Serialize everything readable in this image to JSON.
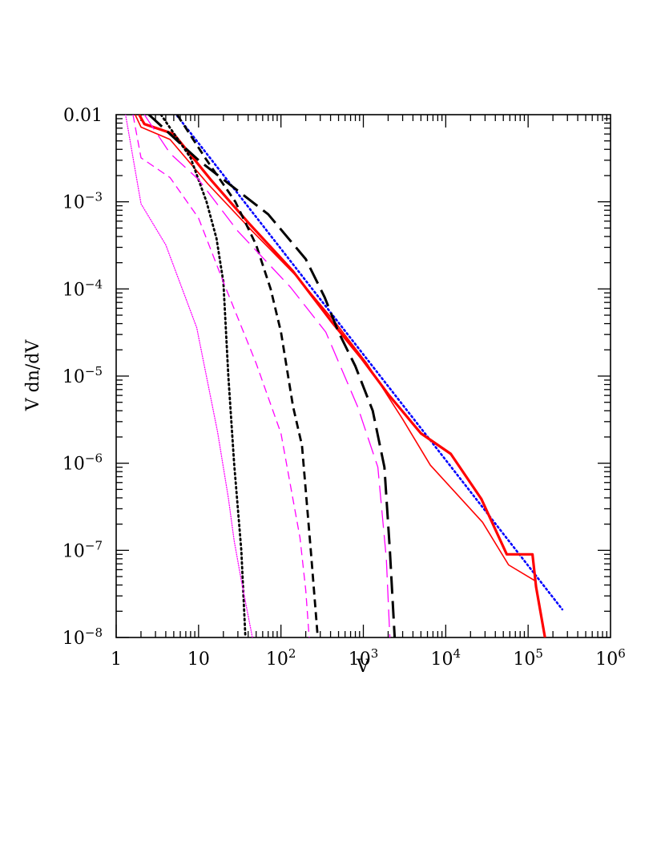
{
  "chart_data": {
    "type": "line",
    "xlabel": "V",
    "ylabel": "V dn/dV",
    "x_scale": "log",
    "y_scale": "log",
    "xlim": [
      1,
      1000000
    ],
    "ylim": [
      1e-08,
      0.01
    ],
    "x_ticks": [
      {
        "value": 1,
        "base": "1",
        "exp": ""
      },
      {
        "value": 10,
        "base": "10",
        "exp": ""
      },
      {
        "value": 100,
        "base": "10",
        "exp": "2"
      },
      {
        "value": 1000,
        "base": "10",
        "exp": "3"
      },
      {
        "value": 10000,
        "base": "10",
        "exp": "4"
      },
      {
        "value": 100000,
        "base": "10",
        "exp": "5"
      },
      {
        "value": 1000000,
        "base": "10",
        "exp": "6"
      }
    ],
    "y_ticks": [
      {
        "value": 1e-08,
        "base": "10",
        "exp": "−8"
      },
      {
        "value": 1e-07,
        "base": "10",
        "exp": "−7"
      },
      {
        "value": 1e-06,
        "base": "10",
        "exp": "−6"
      },
      {
        "value": 1e-05,
        "base": "10",
        "exp": "−5"
      },
      {
        "value": 0.0001,
        "base": "10",
        "exp": "−4"
      },
      {
        "value": 0.001,
        "base": "10",
        "exp": "−3"
      },
      {
        "value": 0.01,
        "base": "0.01",
        "exp": ""
      }
    ],
    "grid": false,
    "legend": "none",
    "series": [
      {
        "color": "#0000ff",
        "style": "dotted",
        "width": 2.6,
        "x": [
          5.5,
          260000
        ],
        "y": [
          0.0097,
          2.1e-08
        ]
      },
      {
        "color": "#ff0000",
        "style": "solid",
        "width": 1.6,
        "x": [
          1.7,
          2.0,
          4.5,
          13,
          45,
          160,
          450,
          1100,
          3000,
          6500,
          28000,
          58000,
          125000
        ],
        "y": [
          0.01,
          0.0072,
          0.0052,
          0.0016,
          0.00046,
          0.000135,
          4.2e-05,
          1.4e-05,
          3.2e-06,
          9.5e-07,
          2.1e-07,
          6.8e-08,
          4.4e-08
        ]
      },
      {
        "color": "#ff0000",
        "style": "solid",
        "width": 3.2,
        "x": [
          1.9,
          2.2,
          5.0,
          14,
          40,
          140,
          420,
          950,
          2000,
          5000,
          11500,
          27000,
          55000,
          113000,
          125000,
          160000
        ],
        "y": [
          0.01,
          0.0078,
          0.006,
          0.0018,
          0.00058,
          0.00016,
          4.1e-05,
          1.6e-05,
          6.2e-06,
          2.2e-06,
          1.28e-06,
          3.9e-07,
          9e-08,
          9e-08,
          3.8e-08,
          1e-08
        ]
      },
      {
        "color": "#000000",
        "style": "dotted",
        "width": 2.8,
        "x": [
          3.5,
          8.0,
          12.5,
          16.5,
          20,
          23,
          27,
          33,
          37
        ],
        "y": [
          0.01,
          0.0032,
          0.001,
          0.00038,
          0.00012,
          1e-05,
          1e-06,
          1e-07,
          1e-08
        ]
      },
      {
        "color": "#000000",
        "style": "short-dash",
        "width": 2.8,
        "x": [
          5.5,
          12,
          28,
          50,
          75,
          100,
          140,
          180,
          230,
          280
        ],
        "y": [
          0.01,
          0.0032,
          0.001,
          0.00032,
          0.0001,
          3.2e-05,
          4.5e-06,
          1.6e-06,
          1e-07,
          1e-08
        ]
      },
      {
        "color": "#000000",
        "style": "long-dash",
        "width": 3.0,
        "x": [
          2.5,
          10,
          70,
          200,
          340,
          500,
          800,
          1300,
          1800,
          2100,
          2400
        ],
        "y": [
          0.01,
          0.003,
          0.00072,
          0.00022,
          8e-05,
          3.2e-05,
          1.3e-05,
          4e-06,
          9e-07,
          1e-07,
          1e-08
        ]
      },
      {
        "color": "#ff00ff",
        "style": "dotted",
        "width": 1.3,
        "x": [
          1.3,
          2.0,
          4.0,
          9.5,
          17,
          23,
          27,
          33,
          45
        ],
        "y": [
          0.01,
          0.00095,
          0.00032,
          3.6e-05,
          2.3e-06,
          4e-07,
          1.3e-07,
          4.5e-08,
          1e-08
        ]
      },
      {
        "color": "#ff00ff",
        "style": "short-dash",
        "width": 1.3,
        "x": [
          1.6,
          2.0,
          4.5,
          10,
          20,
          50,
          100,
          170,
          200,
          220
        ],
        "y": [
          0.01,
          0.0032,
          0.0019,
          0.00065,
          0.00012,
          1.4e-05,
          2.2e-06,
          1.4e-07,
          3.5e-08,
          1e-08
        ]
      },
      {
        "color": "#ff00ff",
        "style": "long-dash",
        "width": 1.3,
        "x": [
          2.2,
          4.5,
          10,
          30,
          130,
          350,
          850,
          1500,
          1900,
          2100
        ],
        "y": [
          0.01,
          0.0036,
          0.0018,
          0.00046,
          0.000105,
          3.2e-05,
          4.5e-06,
          9e-07,
          8e-08,
          1e-08
        ]
      }
    ]
  }
}
